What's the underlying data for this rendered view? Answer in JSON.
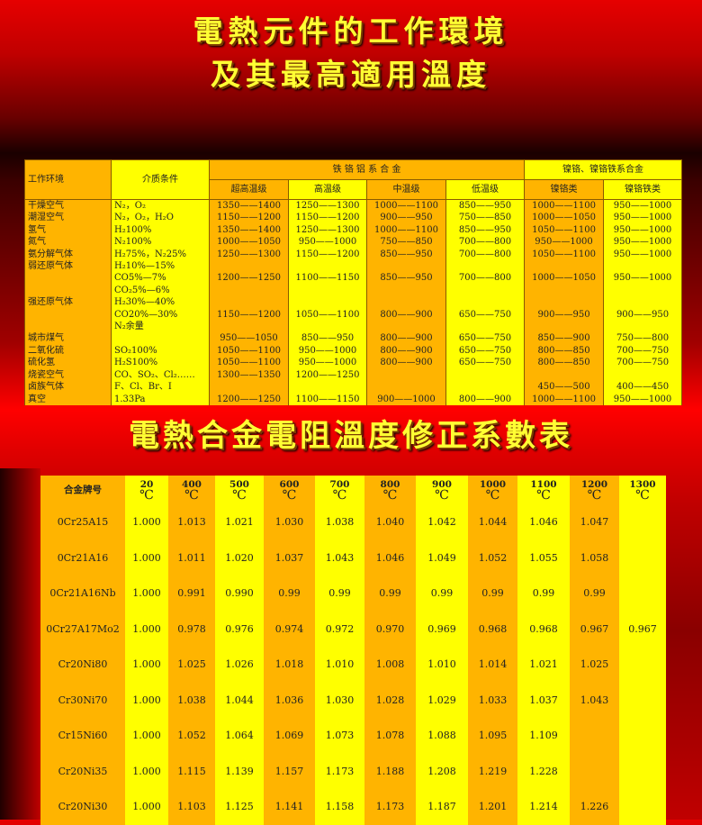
{
  "title1": {
    "line1": "電熱元件的工作環境",
    "line2": "及其最高適用溫度"
  },
  "title2": "電熱合金電阻溫度修正系數表",
  "colors": {
    "orange": "#ffb400",
    "yellow": "#ffff00",
    "title": "#ffff33",
    "background": "#e60000"
  },
  "env_table": {
    "headers": {
      "environment": "工作环境",
      "medium": "介质条件",
      "fecral_group": "铁 铬 铝 系 合 金",
      "nicr_group": "镍铬、镍铬铁系合金",
      "sub": [
        "超高温级",
        "高温级",
        "中温级",
        "低温级",
        "镍铬类",
        "镍铬铁类"
      ]
    },
    "rows": [
      [
        "干燥空气",
        "N₂，O₂",
        "1350——1400",
        "1250——1300",
        "1000——1100",
        "850——950",
        "1000——1100",
        "950——1000"
      ],
      [
        "潮湿空气",
        "N₂，O₂，H₂O",
        "1150——1200",
        "1150——1200",
        "900——950",
        "750——850",
        "1000——1050",
        "950——1000"
      ],
      [
        "氢气",
        "H₂100%",
        "1350——1400",
        "1250——1300",
        "1000——1100",
        "850——950",
        "1050——1100",
        "950——1000"
      ],
      [
        "氮气",
        "N₂100%",
        "1000——1050",
        "950——1000",
        "750——850",
        "700——800",
        "950——1000",
        "950——1000"
      ],
      [
        "氨分解气体",
        "H₂75%，N₂25%",
        "1250——1300",
        "1150——1200",
        "850——950",
        "700——800",
        "1050——1100",
        "950——1000"
      ],
      [
        "弱还原气体",
        "H₂10%—15%",
        "",
        "",
        "",
        "",
        "",
        ""
      ],
      [
        "",
        "CO5%—7%",
        "1200——1250",
        "1100——1150",
        "850——950",
        "700——800",
        "1000——1050",
        "950——1000"
      ],
      [
        "",
        "CO₂5%—6%",
        "",
        "",
        "",
        "",
        "",
        ""
      ],
      [
        "强还原气体",
        "H₂30%—40%",
        "",
        "",
        "",
        "",
        "",
        ""
      ],
      [
        "",
        "CO20%—30%",
        "1150——1200",
        "1050——1100",
        "800——900",
        "650——750",
        "900——950",
        "900——950"
      ],
      [
        "",
        "N₂余量",
        "",
        "",
        "",
        "",
        "",
        ""
      ],
      [
        "城市煤气",
        "",
        "950——1050",
        "850——950",
        "800——900",
        "650——750",
        "850——900",
        "750——800"
      ],
      [
        "二氧化硫",
        "SO₂100%",
        "1050——1100",
        "950——1000",
        "800——900",
        "650——750",
        "800——850",
        "700——750"
      ],
      [
        "硫化氢",
        "H₂S100%",
        "1050——1100",
        "950——1000",
        "800——900",
        "650——750",
        "800——850",
        "700——750"
      ],
      [
        "烧瓷空气",
        "CO、SO₂、Cl₂……",
        "1300——1350",
        "1200——1250",
        "",
        "",
        "",
        ""
      ],
      [
        "卤族气体",
        "F、Cl、Br、I",
        "",
        "",
        "",
        "",
        "450——500",
        "400——450"
      ],
      [
        "真空",
        "1.33Pa",
        "1200——1250",
        "1100——1150",
        "900——1000",
        "800——900",
        "1000——1100",
        "950——1000"
      ]
    ]
  },
  "coef_table": {
    "name_header": "合金牌号",
    "unit": "℃",
    "temps": [
      "20",
      "400",
      "500",
      "600",
      "700",
      "800",
      "900",
      "1000",
      "1100",
      "1200",
      "1300"
    ],
    "rows": [
      [
        "0Cr25A15",
        "1.000",
        "1.013",
        "1.021",
        "1.030",
        "1.038",
        "1.040",
        "1.042",
        "1.044",
        "1.046",
        "1.047",
        ""
      ],
      [
        "0Cr21A16",
        "1.000",
        "1.011",
        "1.020",
        "1.037",
        "1.043",
        "1.046",
        "1.049",
        "1.052",
        "1.055",
        "1.058",
        ""
      ],
      [
        "0Cr21A16Nb",
        "1.000",
        "0.991",
        "0.990",
        "0.99",
        "0.99",
        "0.99",
        "0.99",
        "0.99",
        "0.99",
        "0.99",
        ""
      ],
      [
        "0Cr27A17Mo2",
        "1.000",
        "0.978",
        "0.976",
        "0.974",
        "0.972",
        "0.970",
        "0.969",
        "0.968",
        "0.968",
        "0.967",
        "0.967"
      ],
      [
        "Cr20Ni80",
        "1.000",
        "1.025",
        "1.026",
        "1.018",
        "1.010",
        "1.008",
        "1.010",
        "1.014",
        "1.021",
        "1.025",
        ""
      ],
      [
        "Cr30Ni70",
        "1.000",
        "1.038",
        "1.044",
        "1.036",
        "1.030",
        "1.028",
        "1.029",
        "1.033",
        "1.037",
        "1.043",
        ""
      ],
      [
        "Cr15Ni60",
        "1.000",
        "1.052",
        "1.064",
        "1.069",
        "1.073",
        "1.078",
        "1.088",
        "1.095",
        "1.109",
        "",
        ""
      ],
      [
        "Cr20Ni35",
        "1.000",
        "1.115",
        "1.139",
        "1.157",
        "1.173",
        "1.188",
        "1.208",
        "1.219",
        "1.228",
        "",
        ""
      ],
      [
        "Cr20Ni30",
        "1.000",
        "1.103",
        "1.125",
        "1.141",
        "1.158",
        "1.173",
        "1.187",
        "1.201",
        "1.214",
        "1.226",
        ""
      ]
    ]
  }
}
